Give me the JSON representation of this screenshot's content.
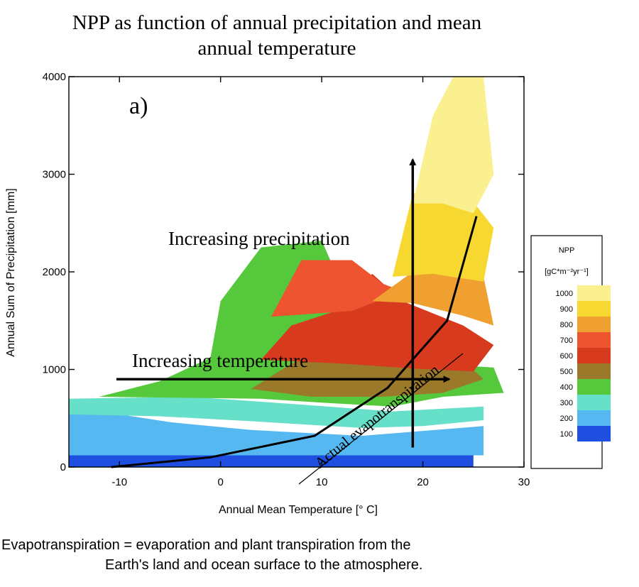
{
  "title_lines": [
    "NPP as function of annual precipitation and mean",
    "annual temperature"
  ],
  "caption_lines": [
    "Evapotranspiration = evaporation and plant transpiration from the",
    "Earth's land and ocean surface to the atmosphere."
  ],
  "colors": {
    "c100": "#1f4fe0",
    "c200": "#55b8f0",
    "c300": "#66e0c8",
    "c400": "#56c83c",
    "c500": "#9a7a2a",
    "c600": "#d83a1e",
    "c700": "#ee5430",
    "c800": "#f0a030",
    "c900": "#f6d830",
    "c1000": "#fbf090"
  },
  "chart_data": {
    "type": "heatmap",
    "xlabel": "Annual Mean Temperature [° C]",
    "ylabel": "Annual Sum of Precipitation [mm]",
    "xlim": [
      -15,
      30
    ],
    "ylim": [
      0,
      4000
    ],
    "xticks": [
      -10,
      0,
      10,
      20,
      30
    ],
    "yticks": [
      0,
      1000,
      2000,
      3000,
      4000
    ],
    "panel_label": "a)",
    "legend": {
      "title": "NPP",
      "unit": "[gC*m⁻²yr⁻¹]",
      "levels": [
        1000,
        900,
        800,
        700,
        600,
        500,
        400,
        300,
        200,
        100
      ],
      "placement": "right"
    },
    "regions": [
      {
        "npp": 100,
        "polygon": [
          [
            -15,
            0
          ],
          [
            25,
            0
          ],
          [
            25,
            120
          ],
          [
            -15,
            160
          ]
        ]
      },
      {
        "npp": 200,
        "polygon": [
          [
            -15,
            120
          ],
          [
            26,
            120
          ],
          [
            26,
            420
          ],
          [
            14,
            320
          ],
          [
            3,
            380
          ],
          [
            -5,
            460
          ],
          [
            -15,
            620
          ]
        ]
      },
      {
        "npp": 300,
        "polygon": [
          [
            -15,
            540
          ],
          [
            -6,
            520
          ],
          [
            3,
            470
          ],
          [
            14,
            400
          ],
          [
            20,
            420
          ],
          [
            26,
            480
          ],
          [
            26,
            620
          ],
          [
            17,
            570
          ],
          [
            8,
            640
          ],
          [
            -3,
            720
          ],
          [
            -15,
            700
          ]
        ]
      },
      {
        "npp": 400,
        "polygon": [
          [
            -12,
            720
          ],
          [
            -6,
            880
          ],
          [
            -1,
            1120
          ],
          [
            0,
            1700
          ],
          [
            4,
            2250
          ],
          [
            10,
            2320
          ],
          [
            12,
            1850
          ],
          [
            16,
            1300
          ],
          [
            22,
            1050
          ],
          [
            27,
            1020
          ],
          [
            28,
            760
          ],
          [
            22,
            720
          ],
          [
            17,
            620
          ],
          [
            10,
            660
          ],
          [
            4,
            700
          ]
        ]
      },
      {
        "npp": 500,
        "polygon": [
          [
            3,
            800
          ],
          [
            7,
            1060
          ],
          [
            12,
            1220
          ],
          [
            18,
            1160
          ],
          [
            24,
            1090
          ],
          [
            26,
            900
          ],
          [
            22,
            760
          ],
          [
            16,
            720
          ],
          [
            9,
            720
          ]
        ]
      },
      {
        "npp": 600,
        "polygon": [
          [
            4,
            1100
          ],
          [
            7,
            1450
          ],
          [
            12,
            1620
          ],
          [
            15,
            1980
          ],
          [
            18,
            1700
          ],
          [
            24,
            1450
          ],
          [
            27,
            1250
          ],
          [
            25,
            980
          ],
          [
            19,
            1010
          ],
          [
            12,
            1060
          ]
        ]
      },
      {
        "npp": 700,
        "polygon": [
          [
            5,
            1540
          ],
          [
            8,
            2120
          ],
          [
            13,
            2120
          ],
          [
            16,
            1880
          ],
          [
            18,
            1800
          ],
          [
            13,
            1600
          ]
        ]
      },
      {
        "npp": 800,
        "polygon": [
          [
            15,
            1700
          ],
          [
            19,
            2000
          ],
          [
            26,
            1950
          ],
          [
            27,
            1450
          ],
          [
            24,
            1550
          ],
          [
            19,
            1680
          ]
        ]
      },
      {
        "npp": 900,
        "polygon": [
          [
            17,
            1950
          ],
          [
            19,
            2800
          ],
          [
            24,
            2850
          ],
          [
            27,
            2450
          ],
          [
            26,
            1900
          ],
          [
            21,
            1980
          ]
        ]
      },
      {
        "npp": 1000,
        "polygon": [
          [
            19,
            2700
          ],
          [
            21,
            3600
          ],
          [
            23,
            4000
          ],
          [
            26,
            4000
          ],
          [
            27,
            3000
          ],
          [
            25,
            2600
          ],
          [
            22,
            2700
          ]
        ]
      }
    ],
    "annotations": [
      {
        "text": "Increasing precipitation",
        "type": "arrow",
        "from": [
          19,
          200
        ],
        "to": [
          19,
          3150
        ]
      },
      {
        "text": "Increasing temperature",
        "type": "arrow",
        "from": [
          -10.3,
          900
        ],
        "to": [
          22.6,
          900
        ]
      },
      {
        "text": "Actual evapotranspiration",
        "type": "curve",
        "points": [
          [
            -10.8,
            0
          ],
          [
            -1,
            100
          ],
          [
            9.3,
            320
          ],
          [
            16.5,
            810
          ],
          [
            22.4,
            1500
          ],
          [
            25.3,
            2570
          ]
        ]
      }
    ]
  }
}
